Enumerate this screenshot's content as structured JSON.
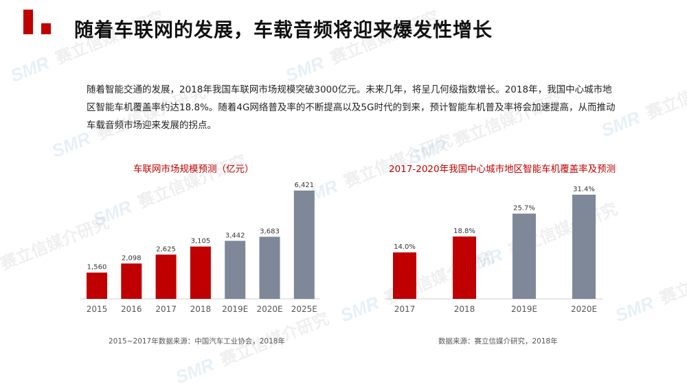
{
  "header": {
    "title": "随着车联网的发展，车载音频将迎来爆发性增长"
  },
  "intro": {
    "paragraph": "随着智能交通的发展，2018年我国车联网市场规模突破3000亿元。未来几年，将呈几何级指数增长。2018年，我国中心城市地区智能车机覆盖率约达18.8%。随着4G网络普及率的不断提高以及5G时代的到来，预计智能车机普及率将会加速提高，从而推动车载音频市场迎来发展的拐点。"
  },
  "watermark": {
    "text": "赛立信媒介研究",
    "logo_text": "SMR"
  },
  "chart_data": [
    {
      "type": "bar",
      "title": "车联网市场规模预测（亿元）",
      "categories": [
        "2015",
        "2016",
        "2017",
        "2018",
        "2019E",
        "2020E",
        "2025E"
      ],
      "values": [
        1560,
        2098,
        2625,
        3105,
        3442,
        3683,
        6421
      ],
      "data_labels": [
        "1,560",
        "2,098",
        "2,625",
        "3,105",
        "3,442",
        "3,683",
        "6,421"
      ],
      "ylim": [
        0,
        6421
      ],
      "colors": [
        "#c00000",
        "#c00000",
        "#c00000",
        "#c00000",
        "#7f8898",
        "#7f8898",
        "#7f8898"
      ],
      "source": "2015~2017年数据来源：中国汽车工业协会，2018年"
    },
    {
      "type": "bar",
      "title": "2017-2020年我国中心城市地区智能车机覆盖率及预测",
      "categories": [
        "2017",
        "2018",
        "2019E",
        "2020E"
      ],
      "values": [
        14.0,
        18.8,
        25.7,
        31.4
      ],
      "data_labels": [
        "14.0%",
        "18.8%",
        "25.7%",
        "31.4%"
      ],
      "ylim": [
        0,
        31.4
      ],
      "colors": [
        "#c00000",
        "#c00000",
        "#7f8898",
        "#7f8898"
      ],
      "source": "数据来源：赛立信媒介研究，2018年"
    }
  ]
}
